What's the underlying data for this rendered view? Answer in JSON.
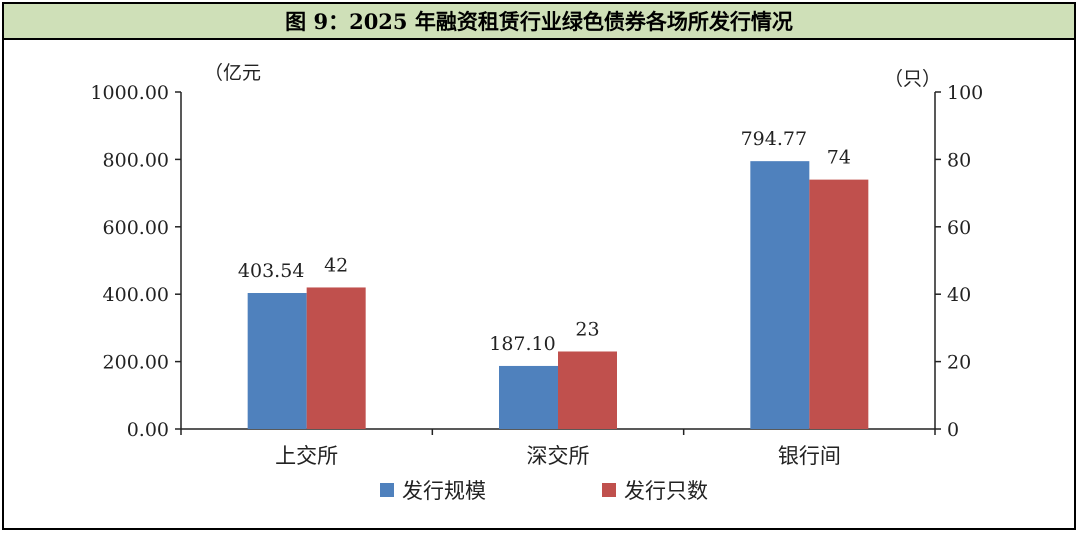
{
  "title": "图 9：2025 年融资租赁行业绿色债券各场所发行情况",
  "colors": {
    "title_bg": "#cfe0b8",
    "series_scale": "#4f81bd",
    "series_count": "#c0504d"
  },
  "chart_data": {
    "type": "bar",
    "categories": [
      "上交所",
      "深交所",
      "银行间"
    ],
    "series": [
      {
        "name": "发行规模",
        "axis": "left",
        "values": [
          403.54,
          187.1,
          794.77
        ],
        "labels": [
          "403.54",
          "187.10",
          "794.77"
        ]
      },
      {
        "name": "发行只数",
        "axis": "right",
        "values": [
          42,
          23,
          74
        ],
        "labels": [
          "42",
          "23",
          "74"
        ]
      }
    ],
    "y_left": {
      "unit": "（亿元",
      "ylim": [
        0,
        1000
      ],
      "ticks": [
        "0.00",
        "200.00",
        "400.00",
        "600.00",
        "800.00",
        "1000.00"
      ]
    },
    "y_right": {
      "unit": "（只）",
      "ylim": [
        0,
        100
      ],
      "ticks": [
        "0",
        "20",
        "40",
        "60",
        "80",
        "100"
      ]
    },
    "legend_position": "bottom",
    "grid": false
  }
}
